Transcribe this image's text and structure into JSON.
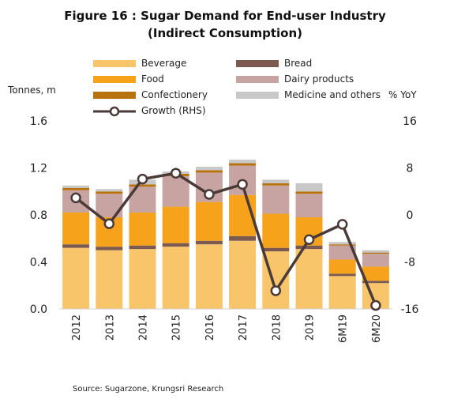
{
  "title_line1": "Figure 16 : Sugar Demand for End-user Industry",
  "title_line2": "(Indirect Consumption)",
  "left_axis_label": "Tonnes, m",
  "right_axis_label": "% YoY",
  "source": "Source: Sugarzone, Krungsri Research",
  "legend": [
    {
      "label": "Beverage",
      "color": "#F9C56B"
    },
    {
      "label": "Bread",
      "color": "#7D5A50"
    },
    {
      "label": "Food",
      "color": "#F7A21B"
    },
    {
      "label": "Dairy products",
      "color": "#C7A3A1"
    },
    {
      "label": "Confectionery",
      "color": "#B8730E"
    },
    {
      "label": "Medicine and others",
      "color": "#C8C8C8"
    },
    {
      "label": "Growth (RHS)",
      "color": "#4A3A38"
    }
  ],
  "chart_data": {
    "type": "bar",
    "stacked": true,
    "categories": [
      "2012",
      "2013",
      "2014",
      "2015",
      "2016",
      "2017",
      "2018",
      "2019",
      "6M19",
      "6M20"
    ],
    "series": [
      {
        "name": "Beverage",
        "color": "#F9C56B",
        "values": [
          0.52,
          0.5,
          0.51,
          0.53,
          0.55,
          0.58,
          0.49,
          0.51,
          0.28,
          0.22
        ]
      },
      {
        "name": "Bread",
        "color": "#7D5A50",
        "values": [
          0.03,
          0.03,
          0.03,
          0.03,
          0.03,
          0.04,
          0.03,
          0.03,
          0.02,
          0.02
        ]
      },
      {
        "name": "Food",
        "color": "#F7A21B",
        "values": [
          0.27,
          0.25,
          0.28,
          0.31,
          0.33,
          0.35,
          0.29,
          0.24,
          0.12,
          0.12
        ]
      },
      {
        "name": "Dairy products",
        "color": "#C7A3A1",
        "values": [
          0.19,
          0.2,
          0.22,
          0.26,
          0.25,
          0.25,
          0.24,
          0.2,
          0.12,
          0.11
        ]
      },
      {
        "name": "Confectionery",
        "color": "#B8730E",
        "values": [
          0.02,
          0.02,
          0.02,
          0.02,
          0.02,
          0.02,
          0.02,
          0.02,
          0.01,
          0.01
        ]
      },
      {
        "name": "Medicine and others",
        "color": "#C8C8C8",
        "values": [
          0.02,
          0.02,
          0.04,
          0.02,
          0.03,
          0.03,
          0.03,
          0.07,
          0.02,
          0.02
        ]
      }
    ],
    "line_series": {
      "name": "Growth (RHS)",
      "color": "#4A3A38",
      "values": [
        2.9,
        -1.5,
        6.1,
        7.1,
        3.5,
        5.2,
        -12.9,
        -4.2,
        -1.6,
        -15.4
      ]
    },
    "ylim": [
      0,
      1.6
    ],
    "yticks": [
      "0.0",
      "0.4",
      "0.8",
      "1.2",
      "1.6"
    ],
    "y2lim": [
      -16,
      16
    ],
    "y2ticks": [
      "-16",
      "-8",
      "0",
      "8",
      "16"
    ],
    "grid": false,
    "legend_position": "top"
  }
}
